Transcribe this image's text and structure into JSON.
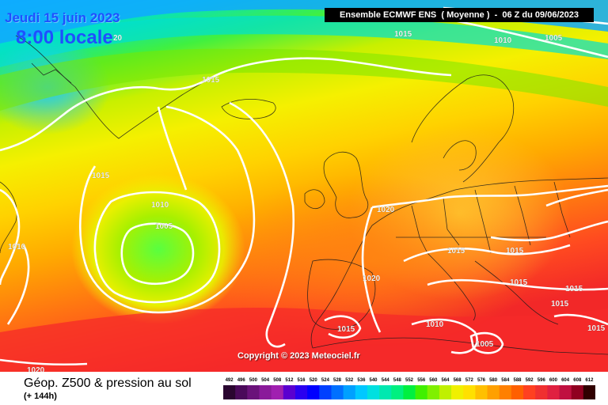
{
  "map": {
    "date": "Jeudi 15 juin 2023",
    "time": "8:00 locale",
    "header": "Ensemble ECMWF ENS  ( Moyenne )  -  06 Z du 09/06/2023",
    "copyright": "Copyright © 2023 Meteociel.fr",
    "isobar_labels": [
      "20",
      "1015",
      "1010",
      "1005",
      "1015",
      "1015",
      "1010",
      "1005",
      "1010",
      "1020",
      "1015",
      "1015",
      "1020",
      "1015",
      "1015",
      "1015",
      "1015",
      "1010",
      "1015",
      "1005",
      "1010",
      "1020"
    ]
  },
  "footer": {
    "title": "Géop. Z500 & pression au sol",
    "subtitle": "(+ 144h)"
  },
  "scale": {
    "labels": [
      "492",
      "496",
      "500",
      "504",
      "508",
      "512",
      "516",
      "520",
      "524",
      "528",
      "532",
      "536",
      "540",
      "544",
      "548",
      "552",
      "556",
      "560",
      "564",
      "568",
      "572",
      "576",
      "580",
      "584",
      "588",
      "592",
      "596",
      "600",
      "604",
      "608",
      "612"
    ],
    "colors": [
      "#2a0630",
      "#4a0a5a",
      "#6a127a",
      "#8a1a9a",
      "#a020b0",
      "#5a00d0",
      "#2a00f0",
      "#0000ff",
      "#0040ff",
      "#0070ff",
      "#00a0ff",
      "#00c8ff",
      "#00e0e0",
      "#00e8b0",
      "#00f080",
      "#00f040",
      "#40f000",
      "#80f000",
      "#c0f000",
      "#f0f000",
      "#ffe000",
      "#ffc000",
      "#ffa000",
      "#ff8000",
      "#ff6000",
      "#ff4020",
      "#f03030",
      "#e02040",
      "#c01040",
      "#900020",
      "#300000"
    ]
  }
}
